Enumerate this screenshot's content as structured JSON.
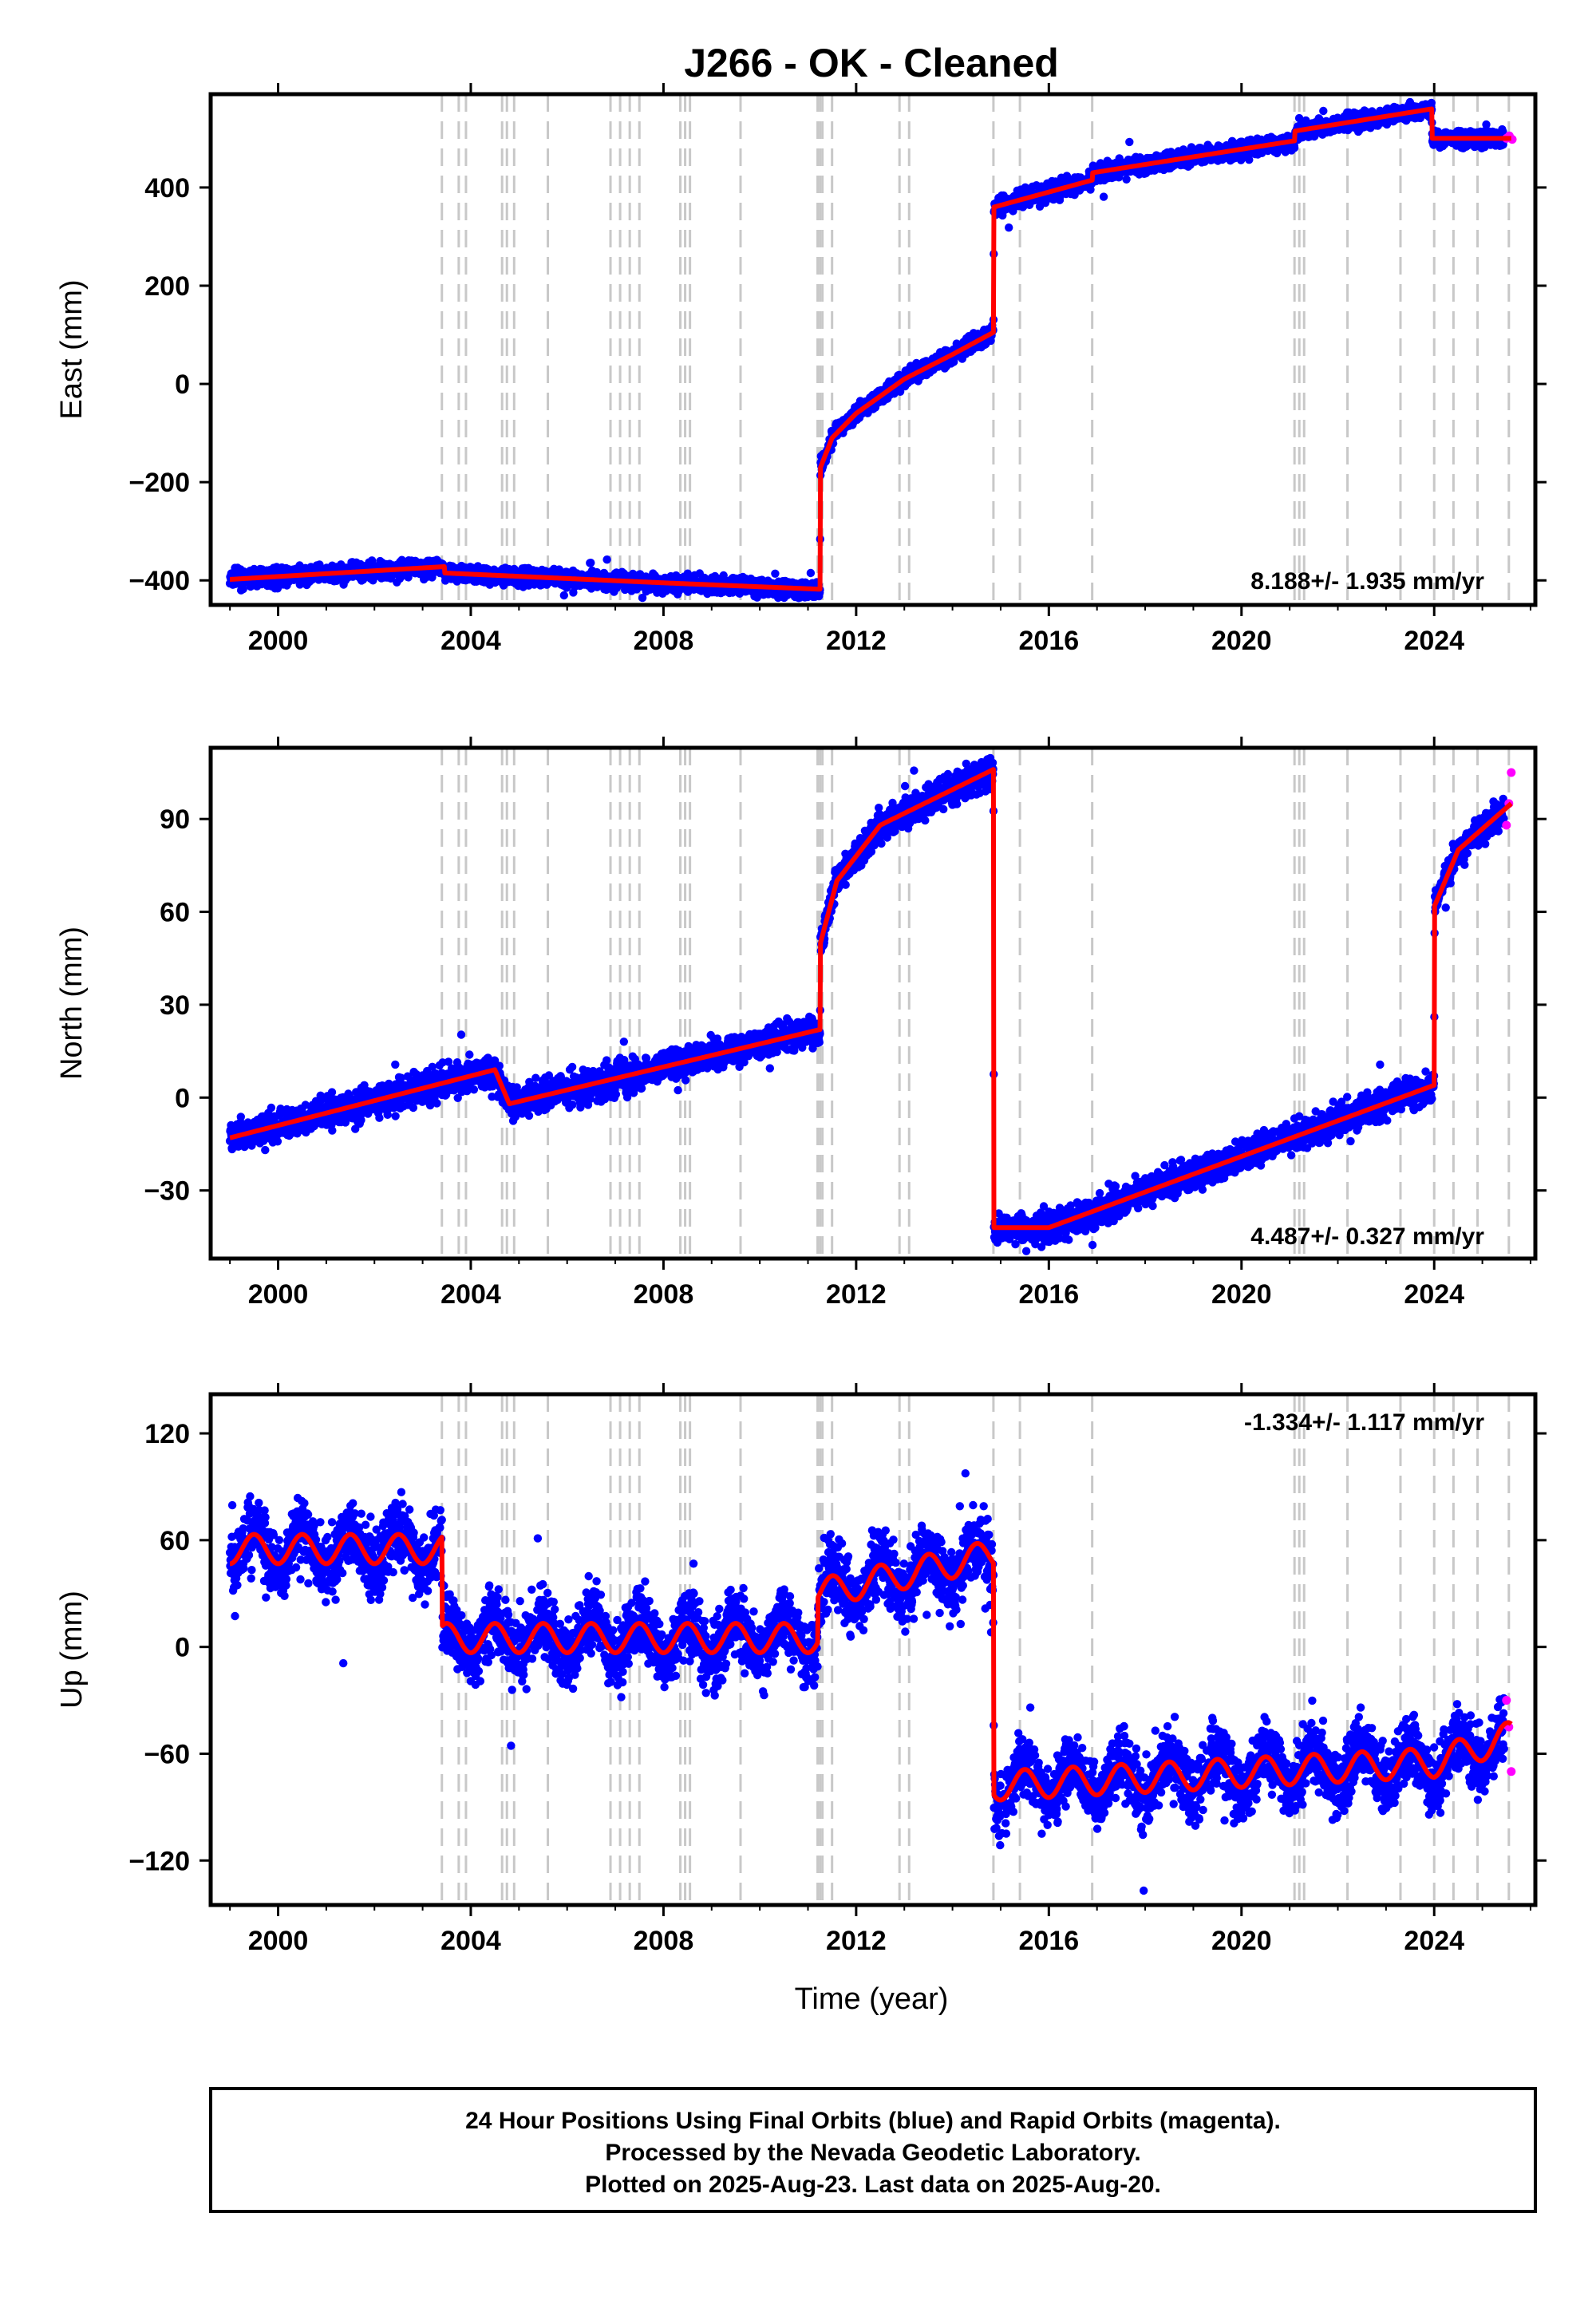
{
  "title": "J266  - OK - Cleaned",
  "colors": {
    "final": "#0000ff",
    "rapid": "#ff00ff",
    "model": "#ff0000",
    "steps": "#c8c8c8",
    "frame": "#000000"
  },
  "footer": {
    "lines": [
      "24 Hour Positions Using Final Orbits (blue) and Rapid Orbits (magenta).",
      "Processed by the Nevada Geodetic Laboratory.",
      "Plotted on 2025-Aug-23. Last data on 2025-Aug-20."
    ]
  },
  "chart_data": [
    {
      "type": "scatter",
      "ylabel": "East (mm)",
      "rate": "8.188+/- 1.935 mm/yr",
      "xlim": [
        1998.6,
        2026.1
      ],
      "ylim": [
        -450,
        590
      ],
      "xticks": [
        "2000",
        "2004",
        "2008",
        "2012",
        "2016",
        "2020",
        "2024"
      ],
      "yticks": [
        "-400",
        "-200",
        "0",
        "200",
        "400"
      ],
      "step_epochs": [
        2003.4,
        2003.75,
        2003.9,
        2004.65,
        2004.75,
        2004.9,
        2005.6,
        2006.9,
        2007.1,
        2007.3,
        2007.5,
        2008.35,
        2008.45,
        2008.55,
        2009.6,
        2011.2,
        2011.25,
        2011.3,
        2011.5,
        2012.9,
        2013.1,
        2014.85,
        2015.4,
        2016.9,
        2021.1,
        2021.2,
        2021.3,
        2022.2,
        2023.3,
        2024.0,
        2024.4,
        2024.9,
        2025.55
      ],
      "model": [
        {
          "x": 1999.0,
          "y": -398
        },
        {
          "x": 2003.45,
          "y": -372
        },
        {
          "x": 2003.46,
          "y": -385
        },
        {
          "x": 2008.0,
          "y": -405
        },
        {
          "x": 2011.25,
          "y": -418
        },
        {
          "x": 2011.26,
          "y": -170
        },
        {
          "x": 2011.5,
          "y": -110
        },
        {
          "x": 2012.0,
          "y": -60
        },
        {
          "x": 2013.0,
          "y": 10
        },
        {
          "x": 2014.0,
          "y": 60
        },
        {
          "x": 2014.85,
          "y": 105
        },
        {
          "x": 2014.86,
          "y": 360
        },
        {
          "x": 2016.9,
          "y": 415
        },
        {
          "x": 2016.91,
          "y": 430
        },
        {
          "x": 2021.1,
          "y": 495
        },
        {
          "x": 2021.11,
          "y": 515
        },
        {
          "x": 2023.95,
          "y": 560
        },
        {
          "x": 2023.96,
          "y": 500
        },
        {
          "x": 2025.6,
          "y": 500
        }
      ],
      "scatter_spread": 12,
      "rapid": [
        {
          "x": 2025.5,
          "y": 500
        },
        {
          "x": 2025.56,
          "y": 505
        },
        {
          "x": 2025.62,
          "y": 498
        }
      ]
    },
    {
      "type": "scatter",
      "ylabel": "North (mm)",
      "rate": "4.487+/- 0.327 mm/yr",
      "xlim": [
        1998.6,
        2026.1
      ],
      "ylim": [
        -52,
        113
      ],
      "xticks": [
        "2000",
        "2004",
        "2008",
        "2012",
        "2016",
        "2020",
        "2024"
      ],
      "yticks": [
        "-30",
        "0",
        "30",
        "60",
        "90"
      ],
      "step_epochs": [
        2003.4,
        2003.75,
        2003.9,
        2004.65,
        2004.75,
        2004.9,
        2005.6,
        2006.9,
        2007.1,
        2007.3,
        2007.5,
        2008.35,
        2008.45,
        2008.55,
        2009.6,
        2011.2,
        2011.25,
        2011.3,
        2011.5,
        2012.9,
        2013.1,
        2014.85,
        2015.4,
        2016.9,
        2021.1,
        2021.2,
        2021.3,
        2022.2,
        2023.3,
        2024.0,
        2024.4,
        2024.9,
        2025.55
      ],
      "model": [
        {
          "x": 1999.0,
          "y": -13
        },
        {
          "x": 2004.5,
          "y": 9
        },
        {
          "x": 2004.8,
          "y": -2
        },
        {
          "x": 2011.25,
          "y": 22
        },
        {
          "x": 2011.26,
          "y": 50
        },
        {
          "x": 2011.6,
          "y": 70
        },
        {
          "x": 2012.5,
          "y": 88
        },
        {
          "x": 2014.85,
          "y": 106
        },
        {
          "x": 2014.86,
          "y": -42
        },
        {
          "x": 2016.0,
          "y": -42
        },
        {
          "x": 2024.0,
          "y": 4
        },
        {
          "x": 2024.01,
          "y": 62
        },
        {
          "x": 2024.5,
          "y": 80
        },
        {
          "x": 2025.6,
          "y": 95
        }
      ],
      "scatter_spread": 3.5,
      "rapid": [
        {
          "x": 2025.5,
          "y": 88
        },
        {
          "x": 2025.55,
          "y": 95
        },
        {
          "x": 2025.6,
          "y": 105
        }
      ]
    },
    {
      "type": "scatter",
      "ylabel": "Up (mm)",
      "xlabel": "Time (year)",
      "rate": "-1.334+/- 1.117 mm/yr",
      "xlim": [
        1998.6,
        2026.1
      ],
      "ylim": [
        -145,
        142
      ],
      "xticks": [
        "2000",
        "2004",
        "2008",
        "2012",
        "2016",
        "2020",
        "2024"
      ],
      "yticks": [
        "-120",
        "-60",
        "0",
        "60",
        "120"
      ],
      "step_epochs": [
        2003.4,
        2003.75,
        2003.9,
        2004.65,
        2004.75,
        2004.9,
        2005.6,
        2006.9,
        2007.1,
        2007.3,
        2007.5,
        2008.35,
        2008.45,
        2008.55,
        2009.6,
        2011.2,
        2011.25,
        2011.3,
        2011.5,
        2012.9,
        2013.1,
        2014.85,
        2015.4,
        2016.9,
        2021.1,
        2021.2,
        2021.3,
        2022.2,
        2023.3,
        2024.0,
        2024.4,
        2024.9,
        2025.55
      ],
      "model": [
        {
          "x": 1999.0,
          "y": 55
        },
        {
          "x": 2003.4,
          "y": 55
        },
        {
          "x": 2003.41,
          "y": 5
        },
        {
          "x": 2011.2,
          "y": 5
        },
        {
          "x": 2011.21,
          "y": 30
        },
        {
          "x": 2014.85,
          "y": 52
        },
        {
          "x": 2014.86,
          "y": -78
        },
        {
          "x": 2024.0,
          "y": -65
        },
        {
          "x": 2025.6,
          "y": -50
        }
      ],
      "seasonal_amplitude": 11,
      "scatter_spread": 13,
      "rapid": [
        {
          "x": 2025.5,
          "y": -30
        },
        {
          "x": 2025.55,
          "y": -45
        },
        {
          "x": 2025.6,
          "y": -70
        }
      ]
    }
  ]
}
